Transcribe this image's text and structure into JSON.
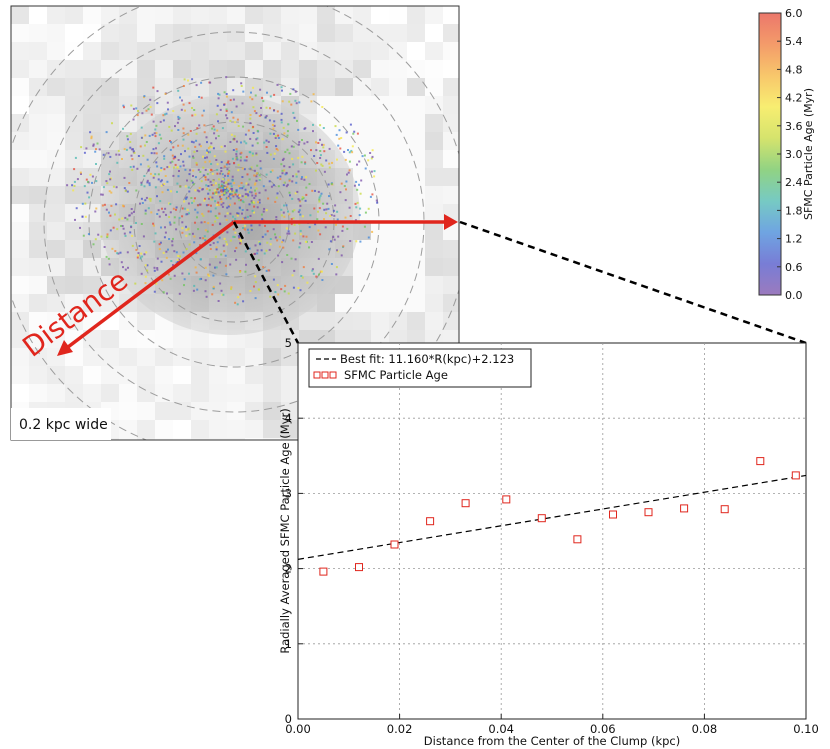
{
  "image_panel": {
    "scale_label": "0.2 kpc wide",
    "distance_label": "Distance"
  },
  "colorbar": {
    "label": "SFMC Particle Age (Myr)",
    "ticks": [
      "6.0",
      "5.4",
      "4.8",
      "4.2",
      "3.6",
      "3.0",
      "2.4",
      "1.8",
      "1.2",
      "0.6",
      "0.0"
    ],
    "range": [
      0.0,
      6.0
    ],
    "colormap_stops": [
      "#7a4ea8",
      "#4b52c8",
      "#3f86d8",
      "#49b8b0",
      "#6cc45a",
      "#c7da3c",
      "#f5e842",
      "#f5b43a",
      "#f07a38",
      "#e54a3a"
    ]
  },
  "colors": {
    "arrow": "#e0261d",
    "marker": "#e0261d",
    "fit_line": "#000000"
  },
  "chart_data": {
    "type": "scatter",
    "xlabel": "Distance from the Center of the Clump (kpc)",
    "ylabel": "Radially Averaged SFMC Particle Age (Myr)",
    "xlim": [
      0.0,
      0.1
    ],
    "ylim": [
      0,
      5
    ],
    "xticks": [
      "0.00",
      "0.02",
      "0.04",
      "0.06",
      "0.08",
      "0.10"
    ],
    "yticks": [
      "0",
      "1",
      "2",
      "3",
      "4",
      "5"
    ],
    "grid": true,
    "legend_position": "top-left",
    "legend": [
      "Best fit: 11.160*R(kpc)+2.123",
      "SFMC Particle Age"
    ],
    "series": [
      {
        "name": "SFMC Particle Age",
        "marker": "open-square",
        "x": [
          0.005,
          0.012,
          0.019,
          0.026,
          0.033,
          0.041,
          0.048,
          0.055,
          0.062,
          0.069,
          0.076,
          0.084,
          0.091,
          0.098
        ],
        "y": [
          1.96,
          2.02,
          2.32,
          2.63,
          2.87,
          2.92,
          2.67,
          2.39,
          2.72,
          2.75,
          2.8,
          2.79,
          3.43,
          3.24
        ]
      },
      {
        "name": "Best fit: 11.160*R(kpc)+2.123",
        "style": "dashed",
        "slope": 11.16,
        "intercept": 2.123
      }
    ]
  }
}
